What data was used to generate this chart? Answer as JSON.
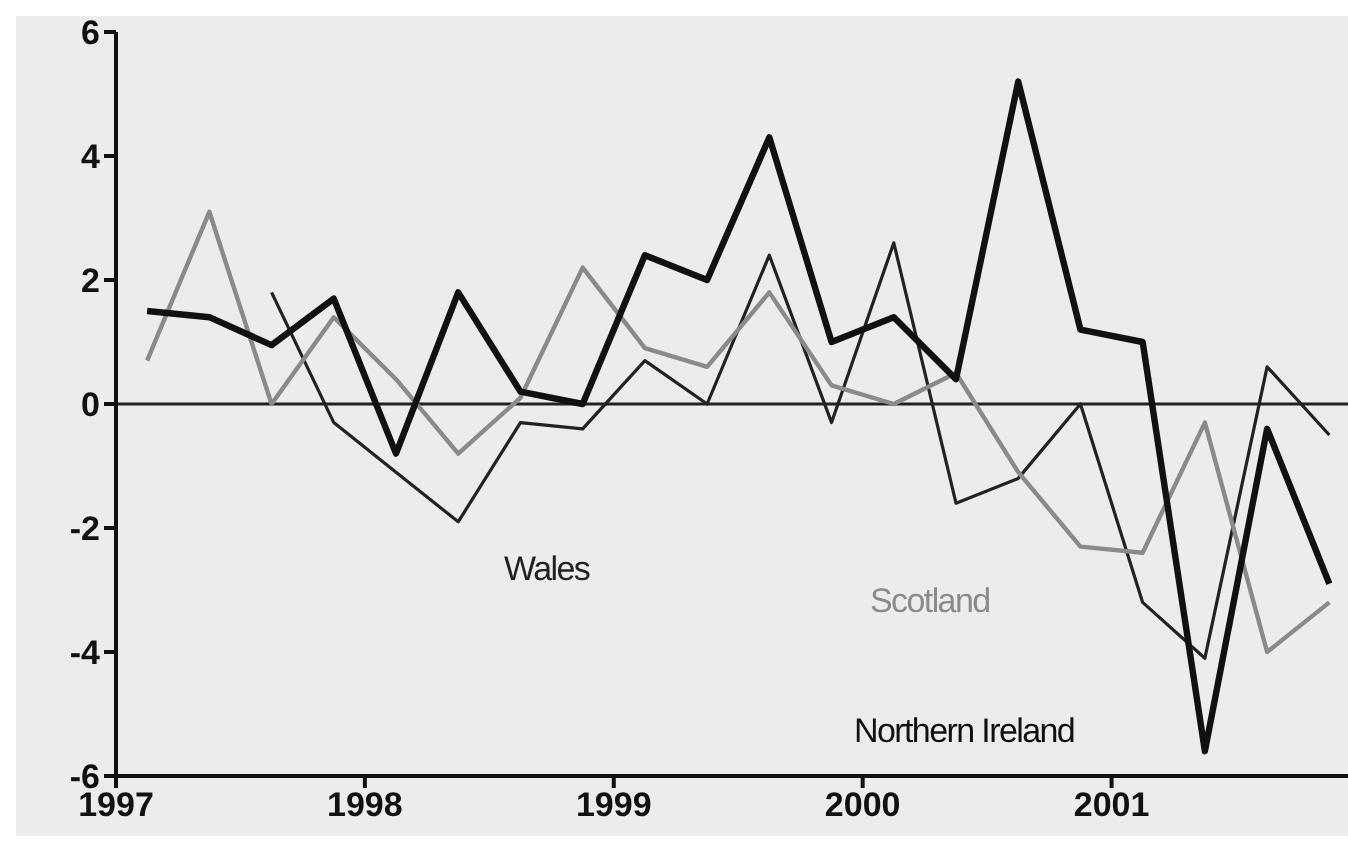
{
  "chart_data": {
    "type": "line",
    "x": [
      1997.125,
      1997.375,
      1997.625,
      1997.875,
      1998.125,
      1998.375,
      1998.625,
      1998.875,
      1999.125,
      1999.375,
      1999.625,
      1999.875,
      2000.125,
      2000.375,
      2000.625,
      2000.875,
      2001.125,
      2001.375,
      2001.625,
      2001.875
    ],
    "series": [
      {
        "name": "Wales",
        "color": "#222222",
        "values": [
          null,
          null,
          1.8,
          -0.3,
          -1.1,
          -1.9,
          -0.3,
          -0.4,
          0.7,
          0.0,
          2.4,
          -0.3,
          2.6,
          -1.6,
          -1.2,
          0.0,
          -3.2,
          -4.1,
          0.6,
          -0.5
        ]
      },
      {
        "name": "Scotland",
        "color": "#8a8a8a",
        "values": [
          0.7,
          3.1,
          0.0,
          1.4,
          0.4,
          -0.8,
          0.1,
          2.2,
          0.9,
          0.6,
          1.8,
          0.3,
          0.0,
          0.5,
          -1.1,
          -2.3,
          -2.4,
          -0.3,
          -4.0,
          -3.2
        ]
      },
      {
        "name": "Northern Ireland",
        "color": "#111111",
        "values": [
          1.5,
          1.4,
          0.95,
          1.7,
          -0.8,
          1.8,
          0.2,
          0.0,
          2.4,
          2.0,
          4.3,
          1.0,
          1.4,
          0.4,
          5.2,
          1.2,
          1.0,
          -5.6,
          -0.4,
          -2.9
        ]
      }
    ],
    "xlim": [
      1997,
      2001.95
    ],
    "xticks": [
      1997,
      1998,
      1999,
      2000,
      2001
    ],
    "ylim": [
      -6,
      6
    ],
    "yticks": [
      -6,
      -4,
      -2,
      0,
      2,
      4,
      6
    ],
    "ref_lines": [
      {
        "axis": "y",
        "value": 0,
        "color": "#222222"
      }
    ],
    "grid": false,
    "legend": false,
    "marker": "none",
    "line_style": "solid"
  }
}
